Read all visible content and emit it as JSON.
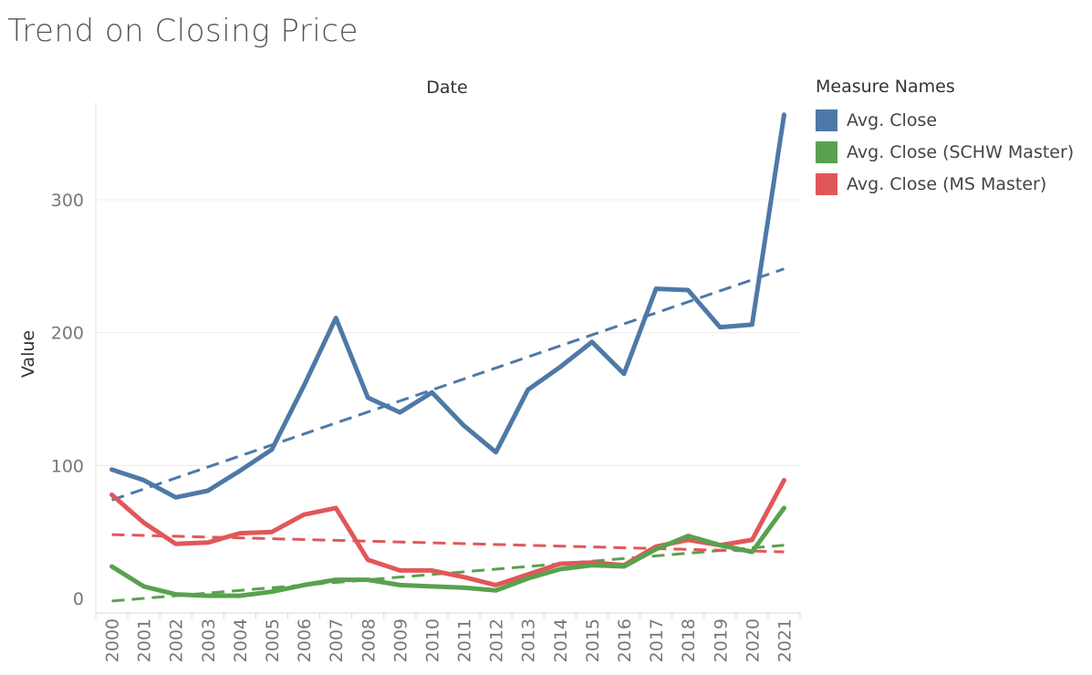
{
  "title": "Trend on Closing Price",
  "chart_data": {
    "type": "line",
    "title": "Trend on Closing Price",
    "column_header": "Date",
    "xlabel": "",
    "ylabel": "Value",
    "categories": [
      "2000",
      "2001",
      "2002",
      "2003",
      "2004",
      "2005",
      "2006",
      "2007",
      "2008",
      "2009",
      "2010",
      "2011",
      "2012",
      "2013",
      "2014",
      "2015",
      "2016",
      "2017",
      "2018",
      "2019",
      "2020",
      "2021"
    ],
    "yticks": [
      0,
      100,
      200,
      300
    ],
    "ylim": [
      -10,
      385
    ],
    "grid": true,
    "legend_position": "right",
    "legend_title": "Measure Names",
    "series": [
      {
        "name": "Avg. Close",
        "color": "#4e79a7",
        "values": [
          97,
          89,
          76,
          81,
          96,
          112,
          160,
          211,
          151,
          140,
          155,
          130,
          110,
          157,
          174,
          193,
          169,
          233,
          232,
          204,
          206,
          364
        ],
        "trend": {
          "style": "dashed",
          "start": 74,
          "end": 248
        }
      },
      {
        "name": "Avg. Close (SCHW Master)",
        "color": "#59a14f",
        "values": [
          24,
          9,
          3,
          2,
          2,
          5,
          10,
          14,
          14,
          10,
          9,
          8,
          6,
          15,
          22,
          25,
          24,
          37,
          47,
          40,
          35,
          68
        ],
        "trend": {
          "style": "dashed",
          "start": -2,
          "end": 40
        }
      },
      {
        "name": "Avg. Close (MS Master)",
        "color": "#e15759",
        "values": [
          78,
          57,
          41,
          42,
          49,
          50,
          63,
          68,
          29,
          21,
          21,
          16,
          10,
          18,
          26,
          27,
          25,
          39,
          44,
          40,
          44,
          89
        ],
        "trend": {
          "style": "dashed",
          "start": 48,
          "end": 35
        }
      }
    ]
  }
}
